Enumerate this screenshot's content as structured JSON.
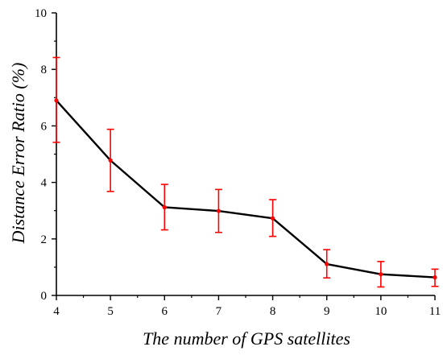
{
  "chart_data": {
    "type": "line",
    "title": "",
    "xlabel": "The number of GPS satellites",
    "ylabel": "Distance Error Ratio (%)",
    "x": [
      4,
      5,
      6,
      7,
      8,
      9,
      10,
      11
    ],
    "xlim": [
      4,
      11
    ],
    "ylim": [
      0,
      10
    ],
    "xticks": [
      4,
      5,
      6,
      7,
      8,
      9,
      10,
      11
    ],
    "yticks": [
      0,
      2,
      4,
      6,
      8,
      10
    ],
    "grid": false,
    "legend": "none",
    "series": [
      {
        "values": [
          6.9,
          4.78,
          3.12,
          2.99,
          2.73,
          1.11,
          0.75,
          0.64
        ],
        "error_low": [
          5.42,
          3.68,
          2.32,
          2.23,
          2.09,
          0.62,
          0.3,
          0.32
        ],
        "error_high": [
          8.42,
          5.88,
          3.93,
          3.75,
          3.39,
          1.62,
          1.2,
          0.93
        ],
        "line_color": "#000000",
        "error_color": "#ff0000",
        "marker_color": "#ff0000"
      }
    ]
  }
}
